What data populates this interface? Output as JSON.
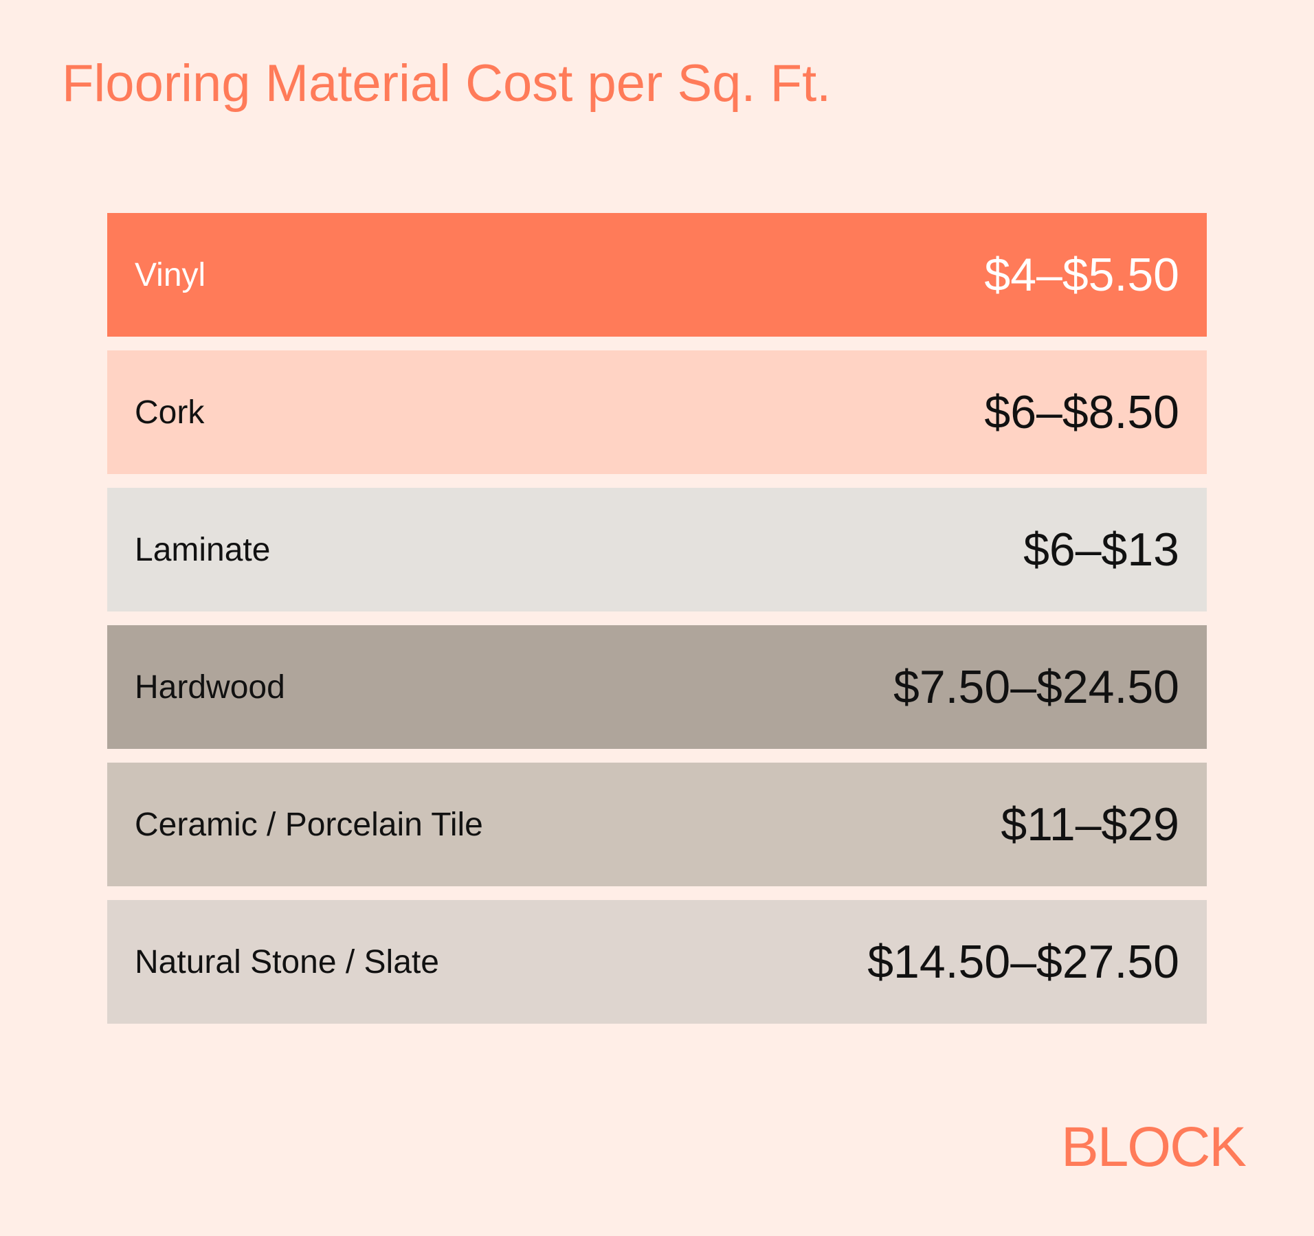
{
  "title": "Flooring Material Cost per Sq. Ft.",
  "rows": [
    {
      "label": "Vinyl",
      "price": "$4–$5.50",
      "bg_color": "#FF7B59",
      "text_color": "#FFFFFF"
    },
    {
      "label": "Cork",
      "price": "$6–$8.50",
      "bg_color": "#FFD3C4",
      "text_color": "#111111"
    },
    {
      "label": "Laminate",
      "price": "$6–$13",
      "bg_color": "#E4E1DD",
      "text_color": "#111111"
    },
    {
      "label": "Hardwood",
      "price": "$7.50–$24.50",
      "bg_color": "#AFA59B",
      "text_color": "#111111"
    },
    {
      "label": "Ceramic / Porcelain Tile",
      "price": "$11–$29",
      "bg_color": "#CDC3B9",
      "text_color": "#111111"
    },
    {
      "label": "Natural Stone / Slate",
      "price": "$14.50–$27.50",
      "bg_color": "#DED5CF",
      "text_color": "#111111"
    }
  ],
  "brand": "BLOCK",
  "colors": {
    "background": "#FFEEE7",
    "accent": "#FF7B59"
  }
}
